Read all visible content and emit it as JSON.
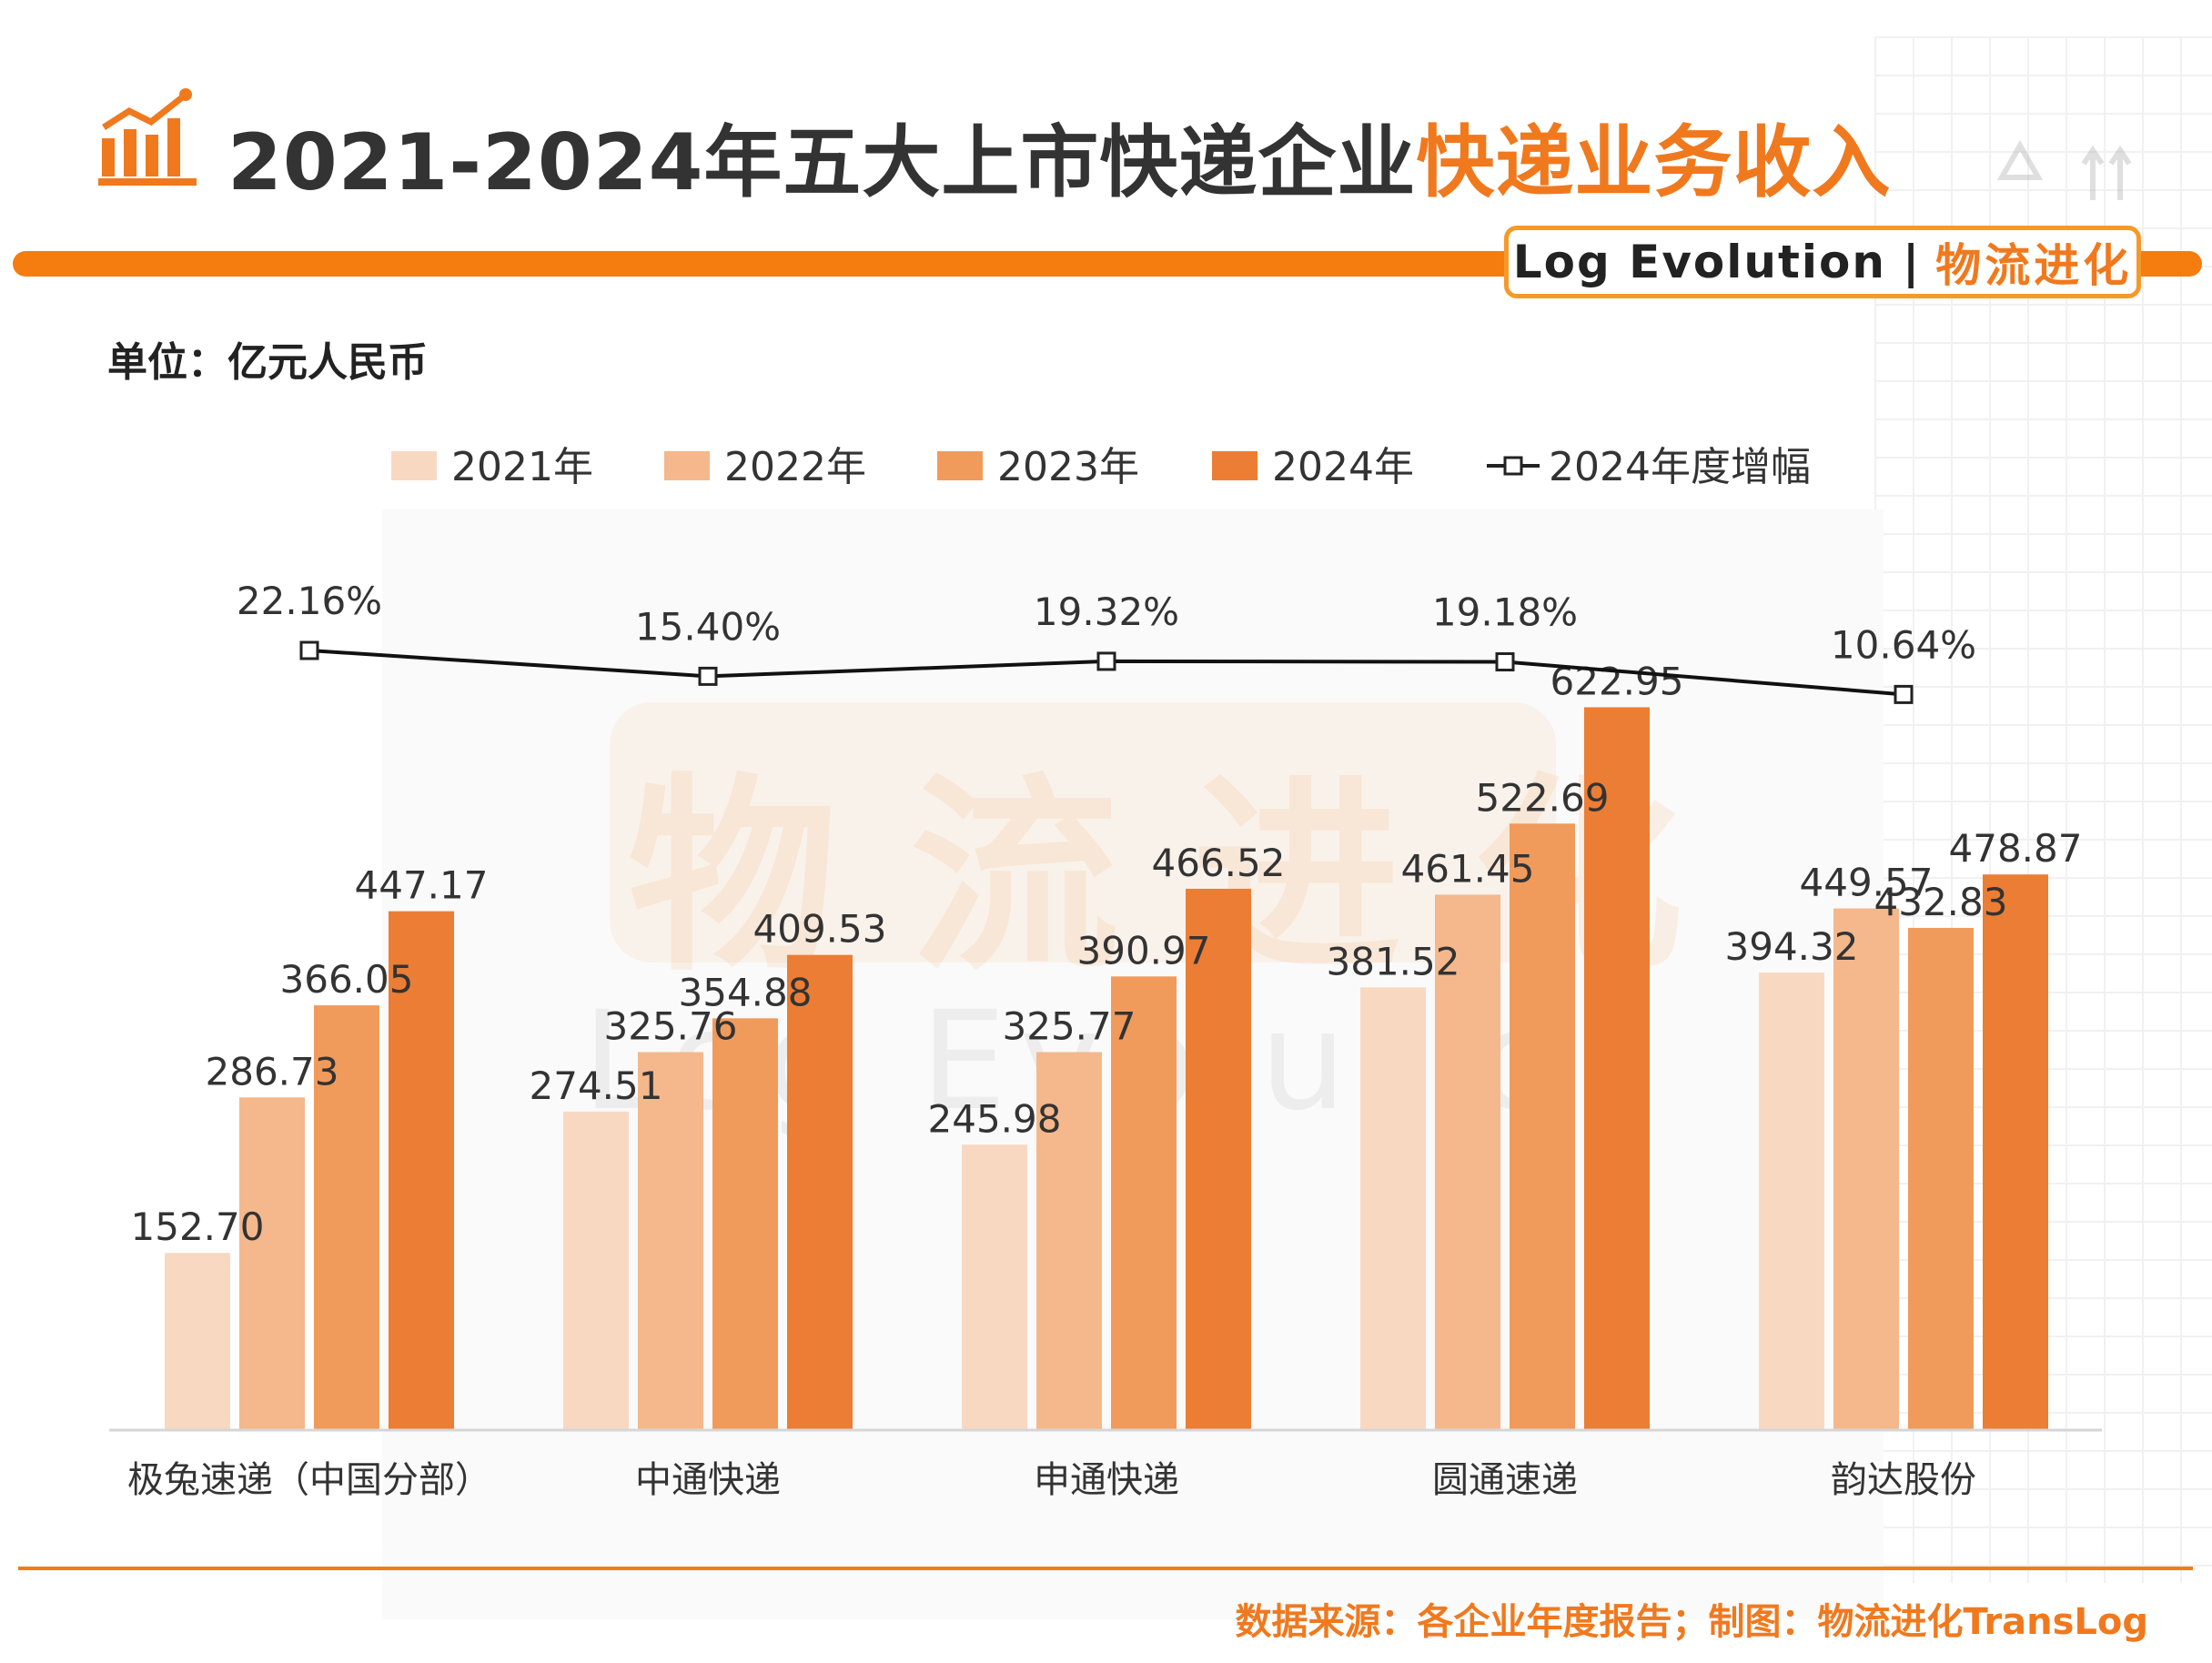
{
  "header": {
    "title_part1": "2021-2024年五大上市快递企业",
    "title_part2": "快递业务收入",
    "brand_en": "Log Evolution",
    "brand_sep": "|",
    "brand_cn": "物流进化",
    "icon": "bar-chart-trend-icon"
  },
  "unit": "单位：亿元人民币",
  "watermark": {
    "cn": "物流进化",
    "en": "Log Evolution"
  },
  "footer": {
    "source": "数据来源：各企业年度报告；制图：物流进化TransLog"
  },
  "colors": {
    "accent": "#f57c0f",
    "title_accent": "#f0791e",
    "s2021": "#f9d8c2",
    "s2022": "#f4b88c",
    "s2023": "#f09b5b",
    "s2024": "#ec7d34",
    "line": "#111111"
  },
  "chart_data": {
    "type": "bar",
    "categories": [
      "极兔速递（中国分部）",
      "中通快递",
      "申通快递",
      "圆通速递",
      "韵达股份"
    ],
    "series": [
      {
        "name": "2021年",
        "values": [
          152.7,
          274.51,
          245.98,
          381.52,
          394.32
        ]
      },
      {
        "name": "2022年",
        "values": [
          286.73,
          325.76,
          325.77,
          461.45,
          449.57
        ]
      },
      {
        "name": "2023年",
        "values": [
          366.05,
          354.88,
          390.97,
          522.69,
          432.83
        ]
      },
      {
        "name": "2024年",
        "values": [
          447.17,
          409.53,
          466.52,
          622.95,
          478.87
        ]
      }
    ],
    "line_series": {
      "name": "2024年度增幅",
      "values": [
        "22.16%",
        "15.40%",
        "19.32%",
        "19.18%",
        "10.64%"
      ],
      "numeric": [
        22.16,
        15.4,
        19.32,
        19.18,
        10.64
      ]
    },
    "legend_position": "top",
    "grid": false,
    "ylim": [
      0,
      720
    ]
  }
}
